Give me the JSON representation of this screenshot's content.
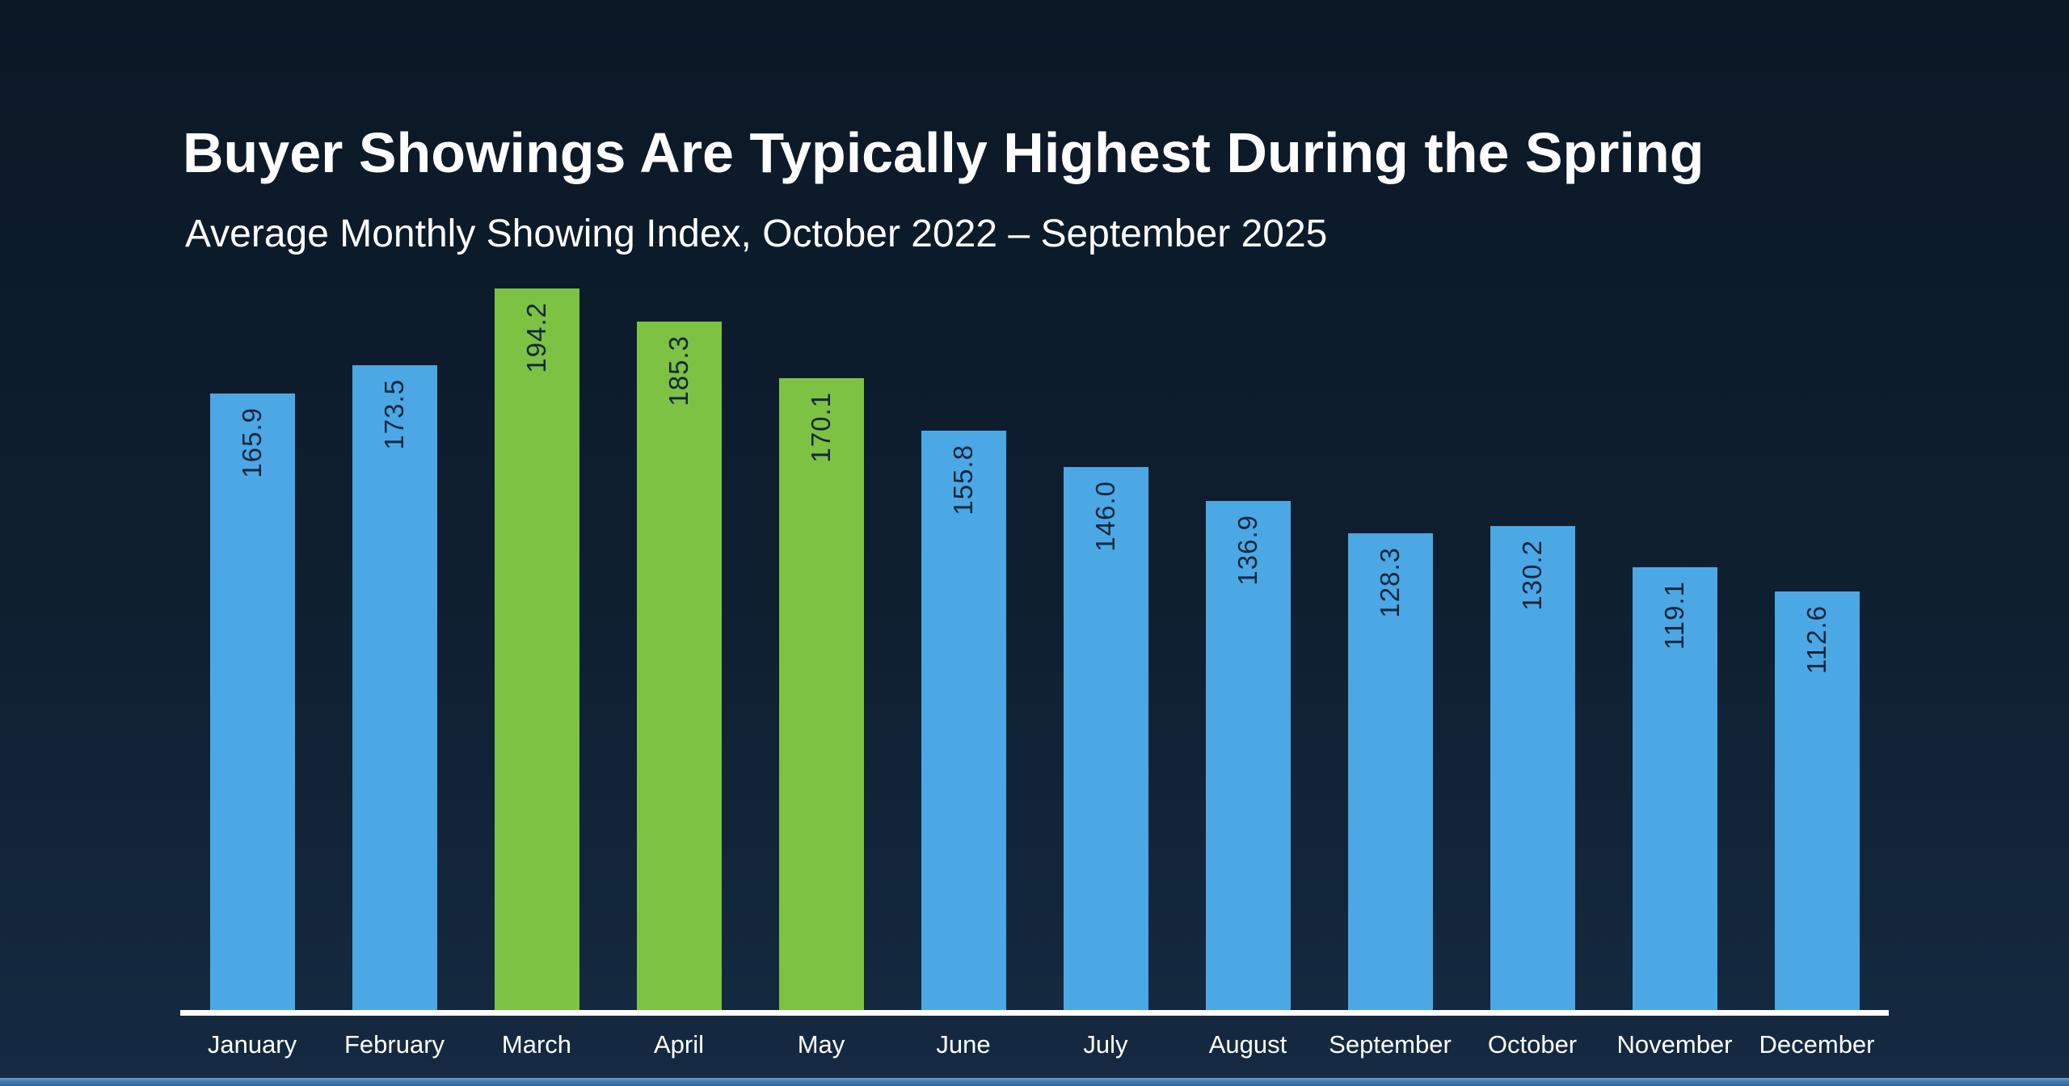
{
  "slide": {
    "title": "Buyer Showings Are Typically Highest During the Spring",
    "subtitle": "Average Monthly Showing Index, October 2022 – September 2025"
  },
  "chart_data": {
    "type": "bar",
    "title": "Buyer Showings Are Typically Highest During the Spring",
    "subtitle": "Average Monthly Showing Index, October 2022 – September 2025",
    "categories": [
      "January",
      "February",
      "March",
      "April",
      "May",
      "June",
      "July",
      "August",
      "September",
      "October",
      "November",
      "December"
    ],
    "values": [
      165.9,
      173.5,
      194.2,
      185.3,
      170.1,
      155.8,
      146.0,
      136.9,
      128.3,
      130.2,
      119.1,
      112.6
    ],
    "value_label_decimals": 1,
    "value_label_style": "rotated 90° counterclockwise, inside top of bar",
    "highlighted_categories": [
      "March",
      "April",
      "May"
    ],
    "xlabel": "",
    "ylabel": "",
    "ylim": [
      0,
      200
    ],
    "grid": false,
    "legend": "none",
    "colors": {
      "bar_default": "#4BA8E4",
      "bar_highlight": "#7DC242",
      "value_label": "#13273E",
      "axis_label": "#FFFFFF",
      "baseline": "#FFFFFF"
    }
  },
  "colors": {
    "background_top": "#0B1826",
    "background_bottom": "#152A42",
    "title_text": "#FFFFFF",
    "subtitle_text": "#FFFFFF",
    "footer_bar_top": "#6D9DCD",
    "footer_bar_main": "#4377AE"
  }
}
